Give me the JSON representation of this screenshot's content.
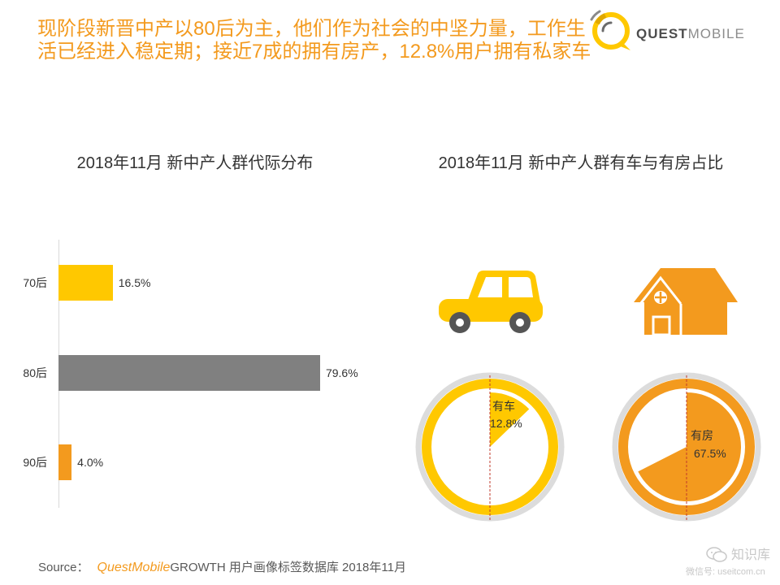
{
  "header": {
    "title_lines": [
      "现阶段新晋中产以80后为主，他们作为社会的中坚力量，工作生",
      "活已经进入稳定期；接近7成的拥有房产，12.8%用户拥有私家车"
    ],
    "accent_color": "#F39A1E"
  },
  "logo": {
    "icon": "questmobile-logo-icon",
    "brand_strong": "QUEST",
    "brand_light": "MOBILE"
  },
  "chart_data": [
    {
      "type": "bar",
      "orientation": "horizontal",
      "title": "2018年11月 新中产人群代际分布",
      "categories": [
        "70后",
        "80后",
        "90后"
      ],
      "values": [
        16.5,
        79.6,
        4.0
      ],
      "value_labels": [
        "16.5%",
        "79.6%",
        "4.0%"
      ],
      "colors": [
        "#FFC800",
        "#808080",
        "#F39A1E"
      ],
      "grid": false
    },
    {
      "type": "pie",
      "title": "2018年11月 新中产人群有车与有房占比",
      "pies": [
        {
          "label": "有车",
          "value": 12.8,
          "value_label": "12.8%",
          "color": "#FFC800",
          "icon": "car-icon"
        },
        {
          "label": "有房",
          "value": 67.5,
          "value_label": "67.5%",
          "color": "#F39A1E",
          "icon": "house-icon"
        }
      ],
      "ring_color": "#DCDCDC",
      "guide_line_color": "#C0392B"
    }
  ],
  "footer": {
    "source_label": "Source：",
    "brand": "QuestMobile",
    "source_text": "GROWTH 用户画像标签数据库 2018年11月"
  },
  "watermark": {
    "icon": "wechat-icon",
    "name": "知识库",
    "account": "微信号: useitcom.cn"
  }
}
